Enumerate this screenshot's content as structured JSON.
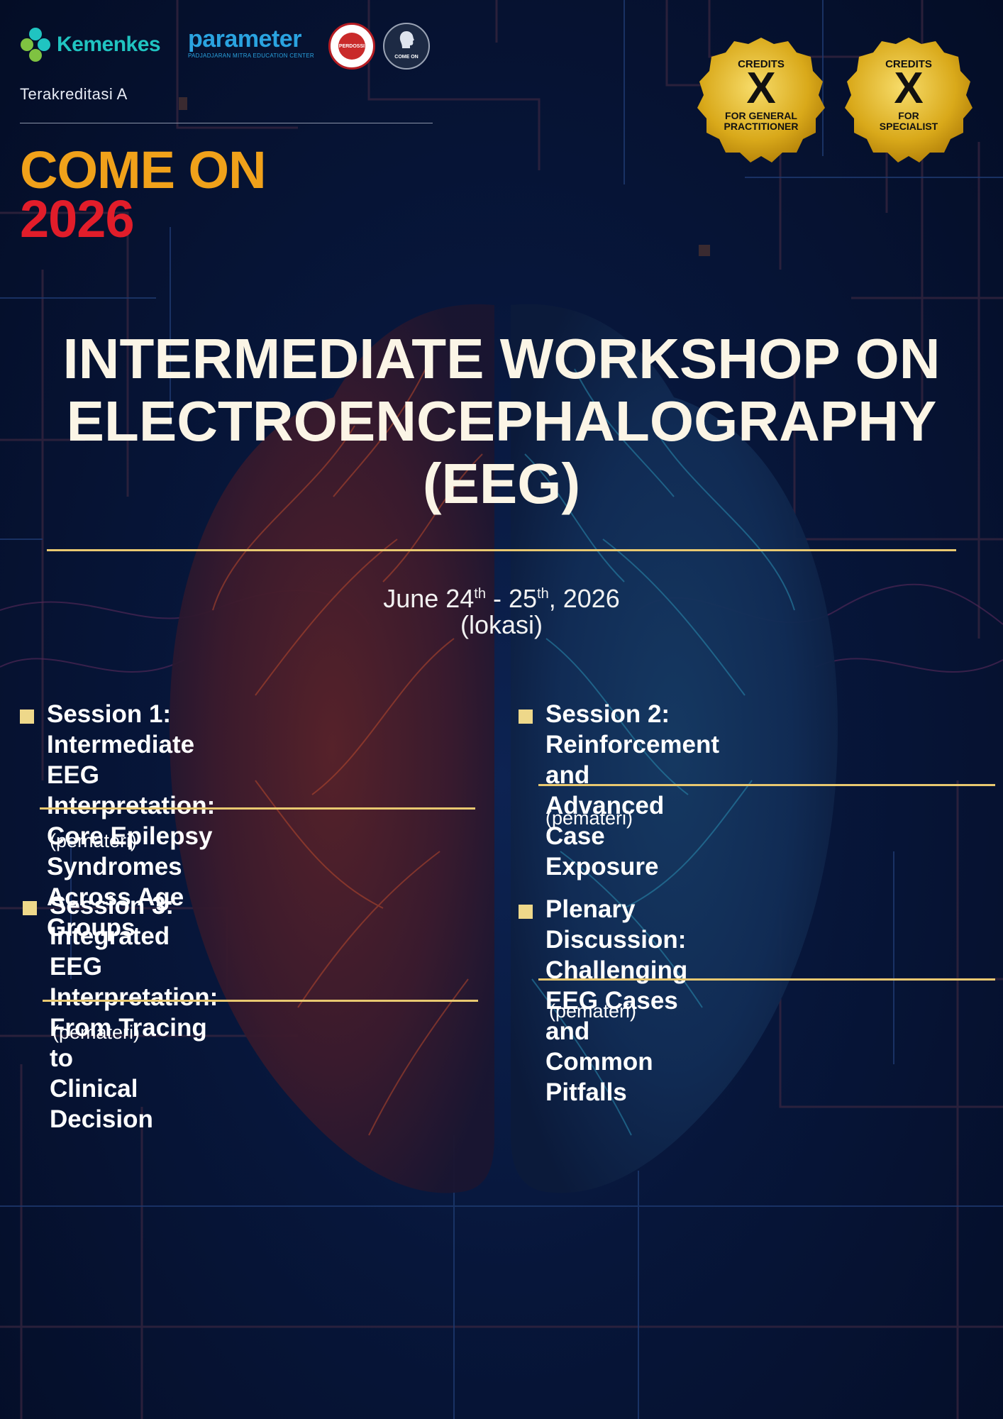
{
  "header": {
    "kemenkes_label": "Kemenkes",
    "parameter_label": "parameter",
    "parameter_sub": "PADJADJARAN MITRA EDUCATION CENTER",
    "perdossi_label": "PERDOSSI",
    "comeon_seal_label": "COME ON",
    "accreditation": "Terakreditasi A"
  },
  "event": {
    "come_on": "COME ON",
    "year": "2026"
  },
  "badges": [
    {
      "credits": "CREDITS",
      "value": "X",
      "for_line1": "FOR GENERAL",
      "for_line2": "PRACTITIONER"
    },
    {
      "credits": "CREDITS",
      "value": "X",
      "for_line1": "FOR",
      "for_line2": "SPECIALIST"
    }
  ],
  "title": {
    "line1": "INTERMEDIATE WORKSHOP ON",
    "line2": "ELECTROENCEPHALOGRAPHY",
    "line3": "(EEG)"
  },
  "date": {
    "month_day1": "June 24",
    "sup1": "th",
    "sep": " - 25",
    "sup2": "th",
    "year": ", 2026",
    "location": "(lokasi)"
  },
  "sessions": [
    {
      "lines": [
        "Session 1: Intermediate EEG",
        "Interpretation: Core Epilepsy",
        "Syndromes Across Age Groups"
      ],
      "speaker": "(pemateri)"
    },
    {
      "lines": [
        "Session 2: Reinforcement and",
        "Advanced Case Exposure"
      ],
      "speaker": "(pemateri)"
    },
    {
      "lines": [
        "Session 3: Integrated EEG",
        "Interpretation: From Tracing to",
        "Clinical Decision"
      ],
      "speaker": "(pemateri)"
    },
    {
      "lines": [
        "Plenary Discussion: Challenging",
        "EEG Cases and Common Pitfalls"
      ],
      "speaker": "(pemateri)"
    }
  ],
  "colors": {
    "background": "#061230",
    "accent_gold": "#e8c870",
    "come_on_orange": "#f0a11a",
    "year_red": "#e11d2a",
    "kemenkes_teal": "#20c4c1",
    "parameter_blue": "#2aa3e0"
  }
}
